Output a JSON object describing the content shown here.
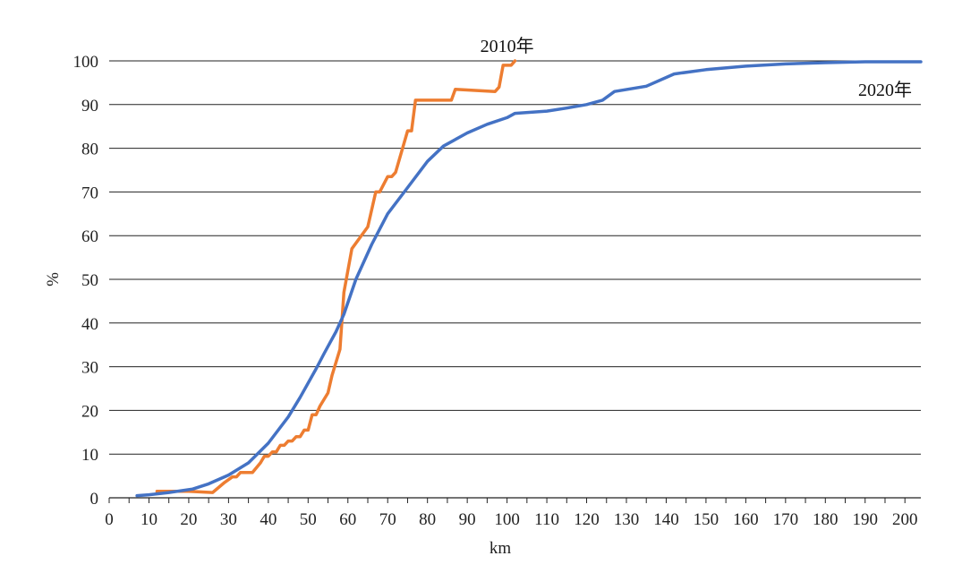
{
  "chart_data": {
    "type": "line",
    "title": "",
    "xlabel": "km",
    "ylabel": "%",
    "xlim": [
      0,
      204
    ],
    "ylim": [
      0,
      100
    ],
    "x_ticks": [
      0,
      10,
      20,
      30,
      40,
      50,
      60,
      70,
      80,
      90,
      100,
      110,
      120,
      130,
      140,
      150,
      160,
      170,
      180,
      190,
      200
    ],
    "y_ticks": [
      0,
      10,
      20,
      30,
      40,
      50,
      60,
      70,
      80,
      90,
      100
    ],
    "grid": "horizontal",
    "legend": "inline labels",
    "series": [
      {
        "name": "2010年",
        "color": "#ED7D31",
        "label_at": [
          100,
          102
        ],
        "points": [
          [
            12,
            1.5
          ],
          [
            20,
            1.5
          ],
          [
            26,
            1.2
          ],
          [
            29,
            3.5
          ],
          [
            31,
            4.8
          ],
          [
            32,
            4.8
          ],
          [
            33,
            5.8
          ],
          [
            36,
            5.8
          ],
          [
            38,
            8
          ],
          [
            39,
            9.5
          ],
          [
            40,
            9.5
          ],
          [
            41,
            10.5
          ],
          [
            42,
            10.5
          ],
          [
            43,
            12
          ],
          [
            44,
            12
          ],
          [
            45,
            13
          ],
          [
            46,
            13
          ],
          [
            47,
            14
          ],
          [
            48,
            14
          ],
          [
            49,
            15.5
          ],
          [
            50,
            15.5
          ],
          [
            51,
            19
          ],
          [
            52,
            19
          ],
          [
            53,
            21
          ],
          [
            55,
            24
          ],
          [
            56,
            28
          ],
          [
            58,
            34
          ],
          [
            59,
            47
          ],
          [
            61,
            57
          ],
          [
            65,
            62
          ],
          [
            67,
            70
          ],
          [
            68,
            70
          ],
          [
            70,
            73.5
          ],
          [
            71,
            73.5
          ],
          [
            72,
            74.5
          ],
          [
            75,
            84
          ],
          [
            76,
            84
          ],
          [
            77,
            91
          ],
          [
            86,
            91
          ],
          [
            87,
            93.5
          ],
          [
            97,
            93
          ],
          [
            98,
            94
          ],
          [
            99,
            99
          ],
          [
            101,
            99
          ],
          [
            102,
            100
          ]
        ]
      },
      {
        "name": "2020年",
        "color": "#4472C4",
        "label_at": [
          195,
          92
        ],
        "points": [
          [
            7,
            0.5
          ],
          [
            10,
            0.7
          ],
          [
            15,
            1.2
          ],
          [
            21,
            2
          ],
          [
            25,
            3.2
          ],
          [
            30,
            5.2
          ],
          [
            35,
            8
          ],
          [
            40,
            12.5
          ],
          [
            45,
            18.5
          ],
          [
            48,
            23
          ],
          [
            52,
            29.5
          ],
          [
            54,
            33
          ],
          [
            57,
            38
          ],
          [
            59,
            42
          ],
          [
            62,
            50
          ],
          [
            66,
            58
          ],
          [
            70,
            65
          ],
          [
            75,
            71
          ],
          [
            80,
            77
          ],
          [
            84,
            80.5
          ],
          [
            90,
            83.5
          ],
          [
            95,
            85.5
          ],
          [
            100,
            87
          ],
          [
            102,
            88
          ],
          [
            110,
            88.5
          ],
          [
            115,
            89.2
          ],
          [
            120,
            90
          ],
          [
            124,
            91
          ],
          [
            127,
            93
          ],
          [
            135,
            94.2
          ],
          [
            142,
            97
          ],
          [
            150,
            98
          ],
          [
            160,
            98.8
          ],
          [
            170,
            99.3
          ],
          [
            180,
            99.6
          ],
          [
            190,
            99.8
          ],
          [
            204,
            99.8
          ]
        ]
      }
    ]
  }
}
